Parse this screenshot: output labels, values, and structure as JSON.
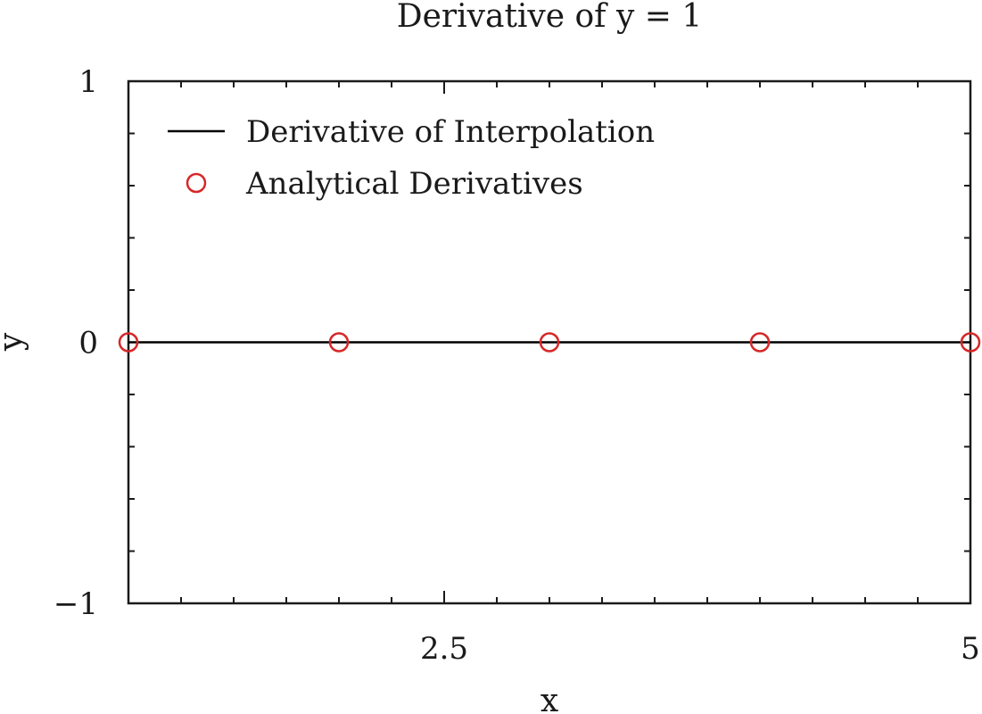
{
  "chart_data": {
    "type": "line",
    "title": "Derivative of y = 1",
    "xlabel": "x",
    "ylabel": "y",
    "xlim": [
      1,
      5
    ],
    "ylim": [
      -1,
      1
    ],
    "x_ticks": [
      {
        "value": 2.5,
        "label": "2.5"
      },
      {
        "value": 5,
        "label": "5"
      }
    ],
    "x_minor_step": 0.25,
    "y_ticks": [
      {
        "value": -1,
        "label": "−1"
      },
      {
        "value": 0,
        "label": "0"
      },
      {
        "value": 1,
        "label": "1"
      }
    ],
    "y_minor_step": 0.2,
    "grid": false,
    "legend_position": "top-left",
    "series": [
      {
        "name": "Derivative of Interpolation",
        "style": "line",
        "color": "#000000",
        "x": [
          1,
          5
        ],
        "y": [
          0,
          0
        ]
      },
      {
        "name": "Analytical Derivatives",
        "style": "marker-circle",
        "color": "#d62728",
        "x": [
          1,
          2,
          3,
          4,
          5
        ],
        "y": [
          0,
          0,
          0,
          0,
          0
        ]
      }
    ]
  }
}
